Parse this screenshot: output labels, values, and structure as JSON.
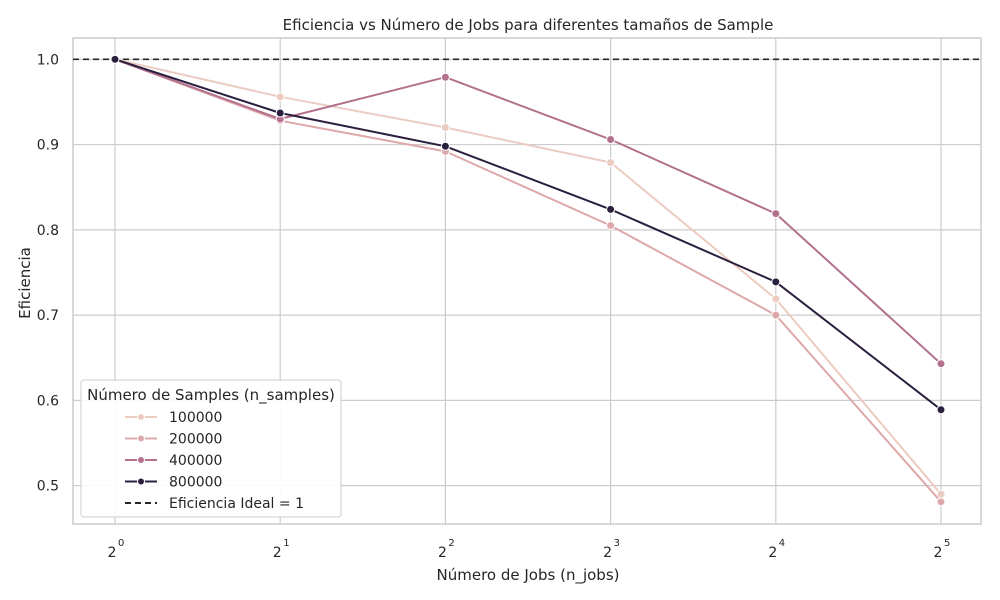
{
  "chart_data": {
    "type": "line",
    "title": "Eficiencia vs Número de Jobs para diferentes tamaños de Sample",
    "xlabel": "Número de Jobs (n_jobs)",
    "ylabel": "Eficiencia",
    "x_scale": "log2",
    "x": [
      1,
      2,
      4,
      8,
      16,
      32
    ],
    "x_tick_labels": [
      {
        "base": "2",
        "exp": "0"
      },
      {
        "base": "2",
        "exp": "1"
      },
      {
        "base": "2",
        "exp": "2"
      },
      {
        "base": "2",
        "exp": "3"
      },
      {
        "base": "2",
        "exp": "4"
      },
      {
        "base": "2",
        "exp": "5"
      }
    ],
    "y_ticks": [
      "0.5",
      "0.6",
      "0.7",
      "0.8",
      "0.9",
      "1.0"
    ],
    "ylim": [
      0.455,
      1.025
    ],
    "grid": true,
    "legend_title": "Número de Samples (n_samples)",
    "legend_placement": "lower-left",
    "series": [
      {
        "name": "100000",
        "color": "#eccbc1",
        "values": [
          1.0,
          0.956,
          0.92,
          0.879,
          0.719,
          0.49
        ]
      },
      {
        "name": "200000",
        "color": "#dda8a9",
        "values": [
          1.0,
          0.928,
          0.892,
          0.805,
          0.7,
          0.481
        ]
      },
      {
        "name": "400000",
        "color": "#b3718e",
        "values": [
          1.0,
          0.93,
          0.979,
          0.906,
          0.819,
          0.643
        ]
      },
      {
        "name": "800000",
        "color": "#2b1f3f",
        "values": [
          1.0,
          0.937,
          0.898,
          0.824,
          0.739,
          0.589
        ]
      }
    ],
    "reference_line": {
      "y": 1.0,
      "label": "Eficiencia Ideal = 1",
      "style": "dashed",
      "color": "#262626"
    }
  }
}
